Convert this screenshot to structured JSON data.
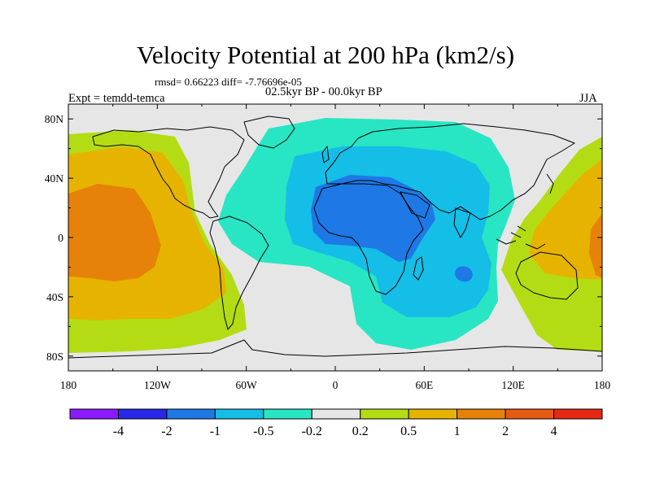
{
  "title": "Velocity Potential at 200 hPa (km2/s)",
  "stats_line": "rmsd= 0.66223 diff= -7.76696e-05",
  "period": "02.5kyr BP - 00.0kyr BP",
  "experiment": "Expt = temdd-temca",
  "season": "JJA",
  "map": {
    "projection": "cylindrical equidistant",
    "lon_range": [
      -180,
      180
    ],
    "lat_range": [
      -90,
      90
    ],
    "lat_ticks": [
      "80N",
      "40N",
      "0",
      "40S",
      "80S"
    ],
    "lon_ticks": [
      "180",
      "120W",
      "60W",
      "0",
      "60E",
      "120E",
      "180"
    ],
    "background_color": "#e6e6e6",
    "coastline_color": "#000000"
  },
  "colorbar": {
    "colors": [
      "#8c1aff",
      "#2828ea",
      "#1e78e6",
      "#14bee6",
      "#28e6c3",
      "#e6e6e6",
      "#b4dc14",
      "#e6b400",
      "#e6820a",
      "#e65a14",
      "#e62814"
    ],
    "labels": [
      "-4",
      "-2",
      "-1",
      "-0.5",
      "-0.2",
      "0.2",
      "0.5",
      "1",
      "2",
      "4"
    ]
  }
}
